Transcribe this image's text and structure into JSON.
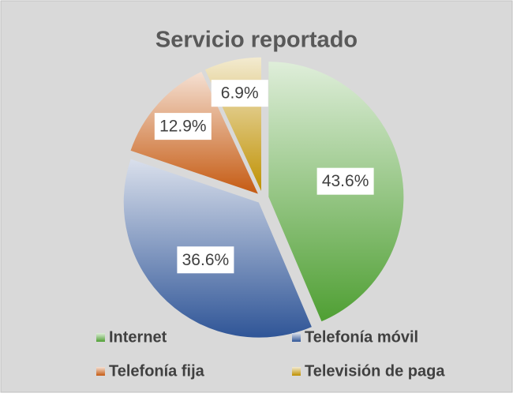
{
  "chart_data": {
    "type": "pie",
    "title": "Servicio reportado",
    "series": [
      {
        "name": "Internet",
        "color": "#4f9f33",
        "values": [
          43.6
        ],
        "value_labels": [
          "43.6%"
        ]
      },
      {
        "name": "Telefonía móvil",
        "color": "#2f5597",
        "values": [
          36.6
        ],
        "value_labels": [
          "36.6%"
        ]
      },
      {
        "name": "Telefonía fija",
        "color": "#c55a11",
        "values": [
          12.9
        ],
        "value_labels": [
          "12.9%"
        ]
      },
      {
        "name": "Televisión de paga",
        "color": "#bf9000",
        "values": [
          6.9
        ],
        "value_labels": [
          "6.9%"
        ]
      }
    ]
  }
}
